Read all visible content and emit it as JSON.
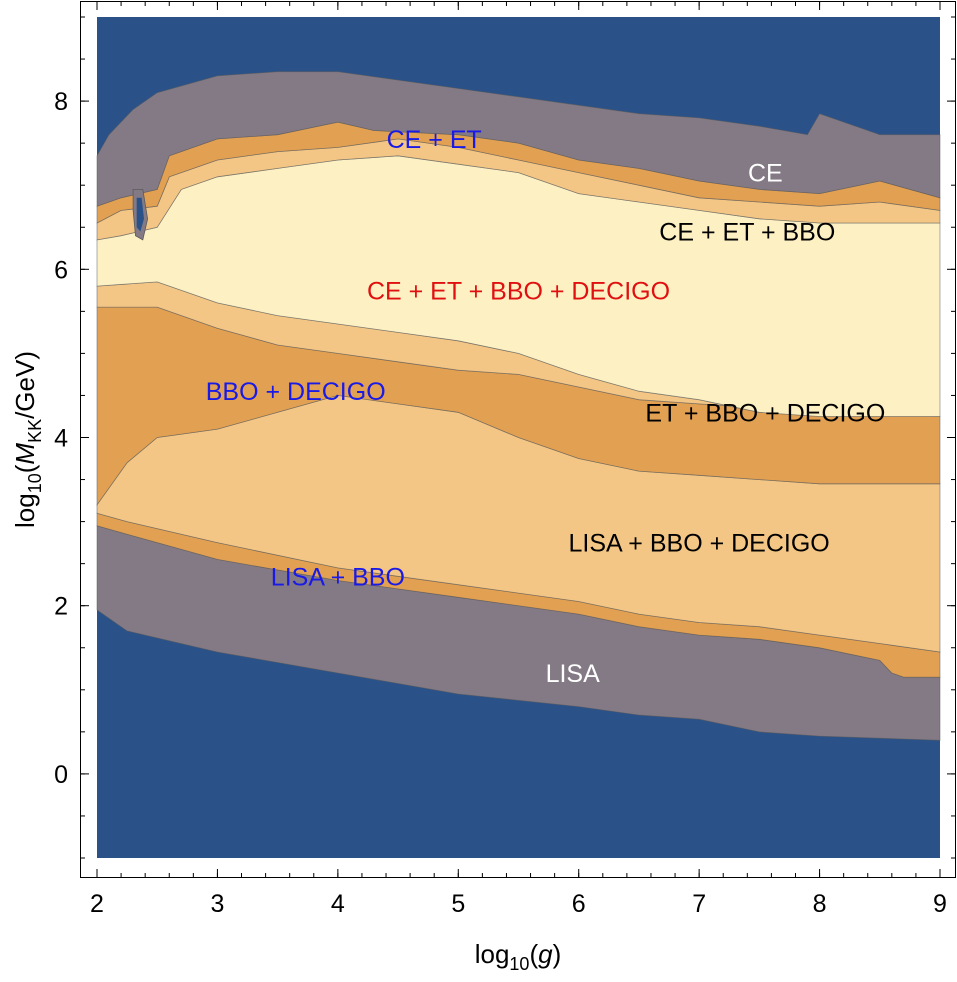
{
  "chart_data": {
    "type": "heatmap",
    "subtype": "region contour plot",
    "xlabel": "log10(g)",
    "ylabel": "log10(MKK/GeV)",
    "xlim": [
      2,
      9
    ],
    "ylim": [
      -1,
      9
    ],
    "x_ticks": [
      2,
      3,
      4,
      5,
      6,
      7,
      8,
      9
    ],
    "y_ticks": [
      0,
      2,
      4,
      6,
      8
    ],
    "grid": false,
    "colors": {
      "none": "#2a5289",
      "one_detector": "#847a85",
      "two_detectors": "#e2a052",
      "three_detectors": "#f3c685",
      "four_detectors": "#fdf1c4"
    },
    "regions": [
      {
        "name": "LISA",
        "detectors": 1,
        "fill": "#847a85",
        "upper": [
          [
            2,
            2.95
          ],
          [
            2.25,
            2.85
          ],
          [
            3,
            2.55
          ],
          [
            4,
            2.3
          ],
          [
            5,
            2.1
          ],
          [
            6,
            1.9
          ],
          [
            6.5,
            1.75
          ],
          [
            7,
            1.65
          ],
          [
            7.5,
            1.6
          ],
          [
            8,
            1.5
          ],
          [
            8.5,
            1.35
          ],
          [
            8.6,
            1.2
          ],
          [
            8.7,
            1.15
          ],
          [
            9,
            1.15
          ]
        ],
        "lower": [
          [
            2,
            1.95
          ],
          [
            2.25,
            1.7
          ],
          [
            3,
            1.45
          ],
          [
            4,
            1.2
          ],
          [
            5,
            0.95
          ],
          [
            6,
            0.8
          ],
          [
            6.5,
            0.7
          ],
          [
            7,
            0.65
          ],
          [
            7.5,
            0.5
          ],
          [
            8,
            0.45
          ],
          [
            9,
            0.4
          ]
        ]
      },
      {
        "name": "LISA + BBO",
        "detectors": 2,
        "fill": "#e2a052",
        "upper": [
          [
            2,
            3.1
          ],
          [
            2.25,
            3.0
          ],
          [
            3,
            2.75
          ],
          [
            4,
            2.45
          ],
          [
            5,
            2.25
          ],
          [
            6,
            2.05
          ],
          [
            6.5,
            1.9
          ],
          [
            7,
            1.8
          ],
          [
            7.5,
            1.75
          ],
          [
            8,
            1.65
          ],
          [
            8.5,
            1.55
          ],
          [
            9,
            1.45
          ]
        ],
        "lower": [
          [
            2,
            2.95
          ],
          [
            2.25,
            2.85
          ],
          [
            3,
            2.55
          ],
          [
            4,
            2.3
          ],
          [
            5,
            2.1
          ],
          [
            6,
            1.9
          ],
          [
            6.5,
            1.75
          ],
          [
            7,
            1.65
          ],
          [
            7.5,
            1.6
          ],
          [
            8,
            1.5
          ],
          [
            8.5,
            1.35
          ],
          [
            8.6,
            1.2
          ],
          [
            8.7,
            1.15
          ],
          [
            9,
            1.15
          ]
        ]
      },
      {
        "name": "LISA + BBO + DECIGO",
        "detectors": 3,
        "fill": "#f3c685",
        "upper": [
          [
            2,
            3.2
          ],
          [
            2.25,
            3.7
          ],
          [
            2.5,
            4.0
          ],
          [
            3,
            4.1
          ],
          [
            3.5,
            4.3
          ],
          [
            4,
            4.5
          ],
          [
            4.5,
            4.4
          ],
          [
            5,
            4.3
          ],
          [
            5.5,
            4.0
          ],
          [
            6,
            3.75
          ],
          [
            6.5,
            3.6
          ],
          [
            7,
            3.55
          ],
          [
            7.5,
            3.5
          ],
          [
            8,
            3.45
          ],
          [
            9,
            3.45
          ]
        ],
        "lower": [
          [
            2,
            3.1
          ],
          [
            2.25,
            3.0
          ],
          [
            3,
            2.75
          ],
          [
            4,
            2.45
          ],
          [
            5,
            2.25
          ],
          [
            6,
            2.05
          ],
          [
            6.5,
            1.9
          ],
          [
            7,
            1.8
          ],
          [
            7.5,
            1.75
          ],
          [
            8,
            1.65
          ],
          [
            8.5,
            1.55
          ],
          [
            9,
            1.45
          ]
        ]
      },
      {
        "name": "BBO + DECIGO",
        "detectors": 2,
        "fill": "#e2a052",
        "upper": [
          [
            2,
            5.55
          ],
          [
            2.5,
            5.55
          ],
          [
            3,
            5.3
          ],
          [
            3.5,
            5.1
          ],
          [
            4,
            5.0
          ],
          [
            4.5,
            4.9
          ],
          [
            5,
            4.8
          ],
          [
            5.5,
            4.75
          ],
          [
            6,
            4.6
          ],
          [
            6.5,
            4.45
          ],
          [
            7,
            4.4
          ],
          [
            7.5,
            4.35
          ],
          [
            8,
            4.3
          ],
          [
            9,
            4.25
          ]
        ],
        "lower": [
          [
            2,
            3.2
          ],
          [
            2.25,
            3.7
          ],
          [
            2.5,
            4.0
          ],
          [
            3,
            4.1
          ],
          [
            3.5,
            4.3
          ],
          [
            4,
            4.5
          ],
          [
            4.5,
            4.4
          ],
          [
            5,
            4.3
          ],
          [
            5.5,
            4.0
          ],
          [
            6,
            3.75
          ],
          [
            6.5,
            3.6
          ],
          [
            7,
            3.55
          ],
          [
            7.5,
            3.5
          ],
          [
            8,
            3.45
          ],
          [
            9,
            3.45
          ]
        ]
      },
      {
        "name": "ET + BBO + DECIGO",
        "detectors": 3,
        "fill": "#f3c685",
        "upper": [
          [
            2,
            5.8
          ],
          [
            2.5,
            5.85
          ],
          [
            3,
            5.6
          ],
          [
            3.5,
            5.45
          ],
          [
            4,
            5.35
          ],
          [
            4.5,
            5.25
          ],
          [
            5,
            5.15
          ],
          [
            5.5,
            5.0
          ],
          [
            6,
            4.75
          ],
          [
            6.5,
            4.55
          ],
          [
            7,
            4.45
          ],
          [
            7.5,
            4.3
          ],
          [
            8,
            4.25
          ],
          [
            9,
            4.25
          ]
        ],
        "lower": [
          [
            2,
            5.55
          ],
          [
            2.5,
            5.55
          ],
          [
            3,
            5.3
          ],
          [
            3.5,
            5.1
          ],
          [
            4,
            5.0
          ],
          [
            4.5,
            4.9
          ],
          [
            5,
            4.8
          ],
          [
            5.5,
            4.75
          ],
          [
            6,
            4.6
          ],
          [
            6.5,
            4.45
          ],
          [
            7,
            4.4
          ],
          [
            7.5,
            4.35
          ],
          [
            8,
            4.3
          ],
          [
            9,
            4.25
          ]
        ]
      },
      {
        "name": "CE + ET + BBO + DECIGO",
        "detectors": 4,
        "fill": "#fdf1c4",
        "upper": [
          [
            2,
            6.35
          ],
          [
            2.2,
            6.4
          ],
          [
            2.5,
            6.5
          ],
          [
            2.7,
            6.95
          ],
          [
            3,
            7.1
          ],
          [
            3.5,
            7.2
          ],
          [
            4,
            7.3
          ],
          [
            4.5,
            7.35
          ],
          [
            5,
            7.25
          ],
          [
            5.5,
            7.15
          ],
          [
            6,
            6.9
          ],
          [
            6.5,
            6.8
          ],
          [
            7,
            6.7
          ],
          [
            7.5,
            6.6
          ],
          [
            8,
            6.55
          ],
          [
            8.5,
            6.55
          ],
          [
            9,
            6.55
          ]
        ],
        "lower": [
          [
            2,
            5.8
          ],
          [
            2.5,
            5.85
          ],
          [
            3,
            5.6
          ],
          [
            3.5,
            5.45
          ],
          [
            4,
            5.35
          ],
          [
            4.5,
            5.25
          ],
          [
            5,
            5.15
          ],
          [
            5.5,
            5.0
          ],
          [
            6,
            4.75
          ],
          [
            6.5,
            4.55
          ],
          [
            7,
            4.45
          ],
          [
            7.5,
            4.3
          ],
          [
            8,
            4.25
          ],
          [
            9,
            4.25
          ]
        ]
      },
      {
        "name": "CE + ET + BBO",
        "detectors": 3,
        "fill": "#f3c685",
        "upper": [
          [
            2,
            6.55
          ],
          [
            2.2,
            6.7
          ],
          [
            2.5,
            6.75
          ],
          [
            2.6,
            7.1
          ],
          [
            3,
            7.3
          ],
          [
            3.5,
            7.4
          ],
          [
            4,
            7.45
          ],
          [
            4.5,
            7.55
          ],
          [
            5,
            7.45
          ],
          [
            5.5,
            7.3
          ],
          [
            6,
            7.15
          ],
          [
            6.5,
            7.0
          ],
          [
            7,
            6.85
          ],
          [
            7.5,
            6.8
          ],
          [
            8,
            6.75
          ],
          [
            8.5,
            6.8
          ],
          [
            9,
            6.7
          ]
        ],
        "lower": [
          [
            2,
            6.35
          ],
          [
            2.2,
            6.4
          ],
          [
            2.5,
            6.5
          ],
          [
            2.7,
            6.95
          ],
          [
            3,
            7.1
          ],
          [
            3.5,
            7.2
          ],
          [
            4,
            7.3
          ],
          [
            4.5,
            7.35
          ],
          [
            5,
            7.25
          ],
          [
            5.5,
            7.15
          ],
          [
            6,
            6.9
          ],
          [
            6.5,
            6.8
          ],
          [
            7,
            6.7
          ],
          [
            7.5,
            6.6
          ],
          [
            8,
            6.55
          ],
          [
            8.5,
            6.55
          ],
          [
            9,
            6.55
          ]
        ]
      },
      {
        "name": "CE + ET",
        "detectors": 2,
        "fill": "#e2a052",
        "upper": [
          [
            2,
            6.75
          ],
          [
            2.2,
            6.85
          ],
          [
            2.5,
            6.95
          ],
          [
            2.6,
            7.35
          ],
          [
            3,
            7.55
          ],
          [
            3.5,
            7.6
          ],
          [
            4,
            7.75
          ],
          [
            4.3,
            7.65
          ],
          [
            5,
            7.6
          ],
          [
            5.5,
            7.5
          ],
          [
            6,
            7.3
          ],
          [
            6.5,
            7.2
          ],
          [
            7,
            7.05
          ],
          [
            7.5,
            6.95
          ],
          [
            8,
            6.9
          ],
          [
            8.5,
            7.05
          ],
          [
            9,
            6.85
          ]
        ],
        "lower": [
          [
            2,
            6.55
          ],
          [
            2.2,
            6.7
          ],
          [
            2.5,
            6.75
          ],
          [
            2.6,
            7.1
          ],
          [
            3,
            7.3
          ],
          [
            3.5,
            7.4
          ],
          [
            4,
            7.45
          ],
          [
            4.5,
            7.55
          ],
          [
            5,
            7.45
          ],
          [
            5.5,
            7.3
          ],
          [
            6,
            7.15
          ],
          [
            6.5,
            7.0
          ],
          [
            7,
            6.85
          ],
          [
            7.5,
            6.8
          ],
          [
            8,
            6.75
          ],
          [
            8.5,
            6.8
          ],
          [
            9,
            6.7
          ]
        ]
      },
      {
        "name": "CE",
        "detectors": 1,
        "fill": "#847a85",
        "upper": [
          [
            2,
            7.35
          ],
          [
            2.1,
            7.6
          ],
          [
            2.3,
            7.9
          ],
          [
            2.5,
            8.1
          ],
          [
            3,
            8.3
          ],
          [
            3.5,
            8.35
          ],
          [
            4,
            8.35
          ],
          [
            4.5,
            8.25
          ],
          [
            5,
            8.15
          ],
          [
            5.5,
            8.05
          ],
          [
            6,
            7.95
          ],
          [
            6.5,
            7.85
          ],
          [
            7,
            7.8
          ],
          [
            7.5,
            7.7
          ],
          [
            7.9,
            7.6
          ],
          [
            8,
            7.85
          ],
          [
            8.5,
            7.6
          ],
          [
            9,
            7.6
          ]
        ],
        "lower": [
          [
            2,
            6.75
          ],
          [
            2.2,
            6.85
          ],
          [
            2.5,
            6.95
          ],
          [
            2.6,
            7.35
          ],
          [
            3,
            7.55
          ],
          [
            3.5,
            7.6
          ],
          [
            4,
            7.75
          ],
          [
            4.3,
            7.65
          ],
          [
            5,
            7.6
          ],
          [
            5.5,
            7.5
          ],
          [
            6,
            7.3
          ],
          [
            6.5,
            7.2
          ],
          [
            7,
            7.05
          ],
          [
            7.5,
            6.95
          ],
          [
            8,
            6.9
          ],
          [
            8.5,
            7.05
          ],
          [
            9,
            6.85
          ]
        ]
      }
    ],
    "annotations": [
      {
        "text": "CE + ET",
        "x": 4.8,
        "y": 7.55,
        "color": "#1a1ae6"
      },
      {
        "text": "CE",
        "x": 7.55,
        "y": 7.15,
        "color": "#ffffff"
      },
      {
        "text": "CE + ET + BBO",
        "x": 7.4,
        "y": 6.45,
        "color": "#000000"
      },
      {
        "text": "CE + ET + BBO + DECIGO",
        "x": 5.5,
        "y": 5.75,
        "color": "#e01010"
      },
      {
        "text": "BBO + DECIGO",
        "x": 3.65,
        "y": 4.55,
        "color": "#1a1ae6"
      },
      {
        "text": "ET + BBO + DECIGO",
        "x": 7.55,
        "y": 4.3,
        "color": "#000000"
      },
      {
        "text": "LISA + BBO + DECIGO",
        "x": 7.0,
        "y": 2.75,
        "color": "#000000"
      },
      {
        "text": "LISA + BBO",
        "x": 4.0,
        "y": 2.35,
        "color": "#1a1ae6"
      },
      {
        "text": "LISA",
        "x": 5.95,
        "y": 1.2,
        "color": "#ffffff"
      }
    ]
  }
}
